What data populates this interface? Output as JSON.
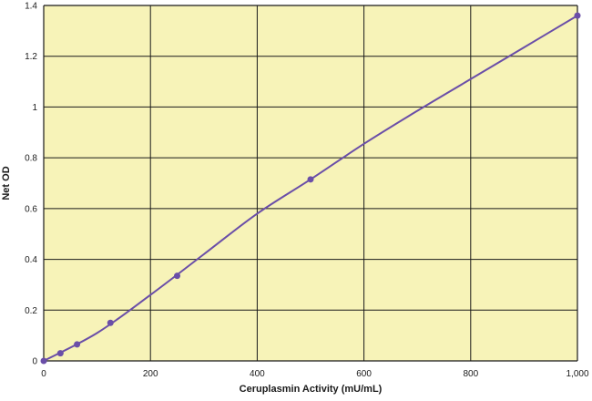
{
  "chart_data": {
    "type": "scatter",
    "xlabel": "Ceruplasmin Activity (mU/mL)",
    "ylabel": "Net OD",
    "xlim": [
      0,
      1000
    ],
    "ylim": [
      0,
      1.4
    ],
    "x_ticks": [
      0,
      200,
      400,
      600,
      800,
      1000
    ],
    "x_tick_labels": [
      "0",
      "200",
      "400",
      "600",
      "800",
      "1,000"
    ],
    "y_ticks": [
      0,
      0.2,
      0.4,
      0.6,
      0.8,
      1,
      1.2,
      1.4
    ],
    "y_tick_labels": [
      "0",
      "0.2",
      "0.4",
      "0.6",
      "0.8",
      "1",
      "1.2",
      "1.4"
    ],
    "grid": true,
    "colors": {
      "plot_background": "#f7f3b8",
      "grid": "#1a1a1a",
      "series": "#6a4ea8",
      "text": "#1a1a1a"
    },
    "series": [
      {
        "points": [
          {
            "x": 0,
            "y": 0.0
          },
          {
            "x": 31.25,
            "y": 0.03
          },
          {
            "x": 62.5,
            "y": 0.065
          },
          {
            "x": 125,
            "y": 0.15
          },
          {
            "x": 250,
            "y": 0.335
          },
          {
            "x": 500,
            "y": 0.715
          },
          {
            "x": 1000,
            "y": 1.36
          }
        ],
        "fit_curve": [
          {
            "x": 0,
            "y": 0.0
          },
          {
            "x": 100,
            "y": 0.11
          },
          {
            "x": 200,
            "y": 0.26
          },
          {
            "x": 300,
            "y": 0.42
          },
          {
            "x": 400,
            "y": 0.58
          },
          {
            "x": 500,
            "y": 0.715
          },
          {
            "x": 600,
            "y": 0.855
          },
          {
            "x": 700,
            "y": 0.985
          },
          {
            "x": 800,
            "y": 1.11
          },
          {
            "x": 900,
            "y": 1.235
          },
          {
            "x": 1000,
            "y": 1.36
          }
        ]
      }
    ]
  }
}
